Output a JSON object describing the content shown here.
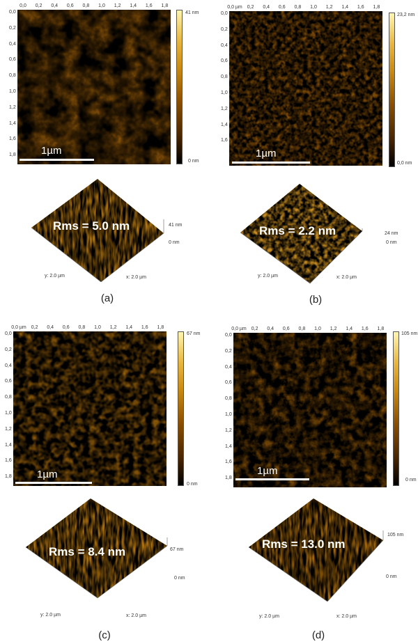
{
  "x_ticks_a": [
    "0,0",
    "0,2",
    "0,4",
    "0,6",
    "0,8",
    "1,0",
    "1,2",
    "1,4",
    "1,6",
    "1,8"
  ],
  "y_ticks_a": [
    "0,0",
    "0,2",
    "0,4",
    "0,6",
    "0,8",
    "1,0",
    "1,2",
    "1,4",
    "1,6",
    "1,8"
  ],
  "x_ticks_b": [
    "0,0 µm",
    "0,2",
    "0,4",
    "0,6",
    "0,8",
    "1,0",
    "1,2",
    "1,4",
    "1,6",
    "1,8"
  ],
  "y_ticks_b": [
    "0,0",
    "0,2",
    "0,4",
    "0,6",
    "0,8",
    "1,0",
    "1,2",
    "1,4",
    "1,6"
  ],
  "x_ticks_c": [
    "0,0 µm",
    "0,2",
    "0,4",
    "0,6",
    "0,8",
    "1,0",
    "1,2",
    "1,4",
    "1,6",
    "1,8"
  ],
  "y_ticks_c": [
    "0,0",
    "0,2",
    "0,4",
    "0,6",
    "0,8",
    "1,0",
    "1,2",
    "1,4",
    "1,6",
    "1,8"
  ],
  "x_ticks_d": [
    "0,0 µm",
    "0,2",
    "0,4",
    "0,6",
    "0,8",
    "1,0",
    "1,2",
    "1,4",
    "1,6",
    "1,8"
  ],
  "y_ticks_d": [
    "0,0",
    "0,2",
    "0,4",
    "0,6",
    "0,8",
    "1,0",
    "1,2",
    "1,4",
    "1,6",
    "1,8"
  ],
  "panels": {
    "a": {
      "caption": "(a)",
      "rms": "Rms = 5.0 nm",
      "scale_bar": "1µm",
      "cb_max": "41 nm",
      "cb_min": "0 nm",
      "surf_max": "41 nm",
      "surf_min": "0 nm",
      "y_axis": "y: 2.0 µm",
      "x_axis": "x: 2.0 µm"
    },
    "b": {
      "caption": "(b)",
      "rms": "Rms = 2.2 nm",
      "scale_bar": "1µm",
      "cb_max": "23,2 nm",
      "cb_min": "0,0 nm",
      "surf_max": "24 nm",
      "surf_min": "0 nm",
      "y_axis": "y: 2.0 µm",
      "x_axis": "x: 2.0 µm"
    },
    "c": {
      "caption": "(c)",
      "rms": "Rms = 8.4 nm",
      "scale_bar": "1µm",
      "cb_max": "67 nm",
      "cb_min": "0 nm",
      "surf_max": "67 nm",
      "surf_min": "0 nm",
      "y_axis": "y: 2.0 µm",
      "x_axis": "x: 2.0 µm"
    },
    "d": {
      "caption": "(d)",
      "rms": "Rms = 13.0 nm",
      "scale_bar": "1µm",
      "cb_max": "105 nm",
      "cb_min": "0 nm",
      "surf_max": "105 nm",
      "surf_min": "0 nm",
      "y_axis": "y: 2.0 µm",
      "x_axis": "x: 2.0 µm"
    }
  },
  "colors": {
    "dark": "#3a1f00",
    "mid": "#b87a10",
    "light": "#f2cf62"
  }
}
